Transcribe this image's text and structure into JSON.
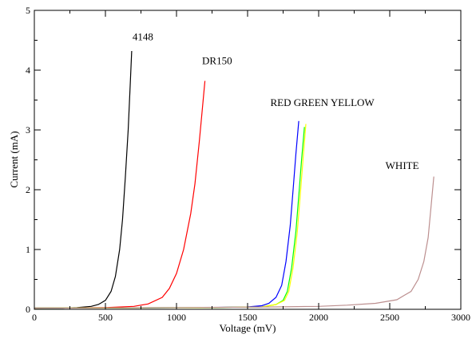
{
  "chart_data": {
    "type": "line",
    "title": "",
    "xlabel": "Voltage (mV)",
    "ylabel": "Current (mA)",
    "xlim": [
      0,
      3000
    ],
    "ylim": [
      0,
      5
    ],
    "x_ticks": [
      "0",
      "500",
      "1000",
      "1500",
      "2000",
      "2500",
      "3000"
    ],
    "y_ticks": [
      "0",
      "1",
      "2",
      "3",
      "4",
      "5"
    ],
    "grid": false,
    "legend": "none",
    "annotations": [
      {
        "text": "4148",
        "x": 690,
        "y": 4.5
      },
      {
        "text": "DR150",
        "x": 1180,
        "y": 4.1
      },
      {
        "text": "RED GREEN YELLOW",
        "x": 1660,
        "y": 3.4
      },
      {
        "text": "WHITE",
        "x": 2470,
        "y": 2.35
      }
    ],
    "series": [
      {
        "color": "#000000",
        "x": [
          0,
          200,
          300,
          400,
          450,
          500,
          540,
          570,
          600,
          620,
          640,
          660,
          675,
          685
        ],
        "y": [
          0.02,
          0.02,
          0.03,
          0.05,
          0.08,
          0.15,
          0.3,
          0.55,
          1.0,
          1.5,
          2.2,
          3.0,
          3.8,
          4.32
        ]
      },
      {
        "color": "#ff0000",
        "x": [
          0,
          500,
          700,
          800,
          900,
          950,
          1000,
          1050,
          1100,
          1130,
          1160,
          1180,
          1200
        ],
        "y": [
          0.02,
          0.03,
          0.05,
          0.09,
          0.2,
          0.35,
          0.6,
          1.0,
          1.6,
          2.1,
          2.8,
          3.3,
          3.82
        ]
      },
      {
        "color": "#0000ff",
        "x": [
          0,
          1200,
          1500,
          1600,
          1650,
          1700,
          1740,
          1770,
          1800,
          1820,
          1840,
          1860
        ],
        "y": [
          0.02,
          0.03,
          0.04,
          0.06,
          0.1,
          0.2,
          0.4,
          0.8,
          1.4,
          2.0,
          2.6,
          3.15
        ]
      },
      {
        "color": "#00ff00",
        "x": [
          0,
          1200,
          1600,
          1700,
          1750,
          1780,
          1810,
          1840,
          1860,
          1880,
          1900
        ],
        "y": [
          0.02,
          0.03,
          0.04,
          0.08,
          0.15,
          0.3,
          0.7,
          1.3,
          1.9,
          2.5,
          3.05
        ]
      },
      {
        "color": "#ffff00",
        "x": [
          0,
          1200,
          1600,
          1700,
          1760,
          1790,
          1820,
          1850,
          1870,
          1890,
          1910
        ],
        "y": [
          0.02,
          0.03,
          0.04,
          0.08,
          0.15,
          0.3,
          0.7,
          1.3,
          1.9,
          2.5,
          3.1
        ]
      },
      {
        "color": "#bc8f8f",
        "x": [
          0,
          1000,
          1700,
          2000,
          2200,
          2400,
          2550,
          2650,
          2700,
          2740,
          2770,
          2790,
          2810
        ],
        "y": [
          0.02,
          0.03,
          0.04,
          0.05,
          0.07,
          0.1,
          0.16,
          0.3,
          0.5,
          0.8,
          1.2,
          1.7,
          2.22
        ]
      }
    ]
  }
}
